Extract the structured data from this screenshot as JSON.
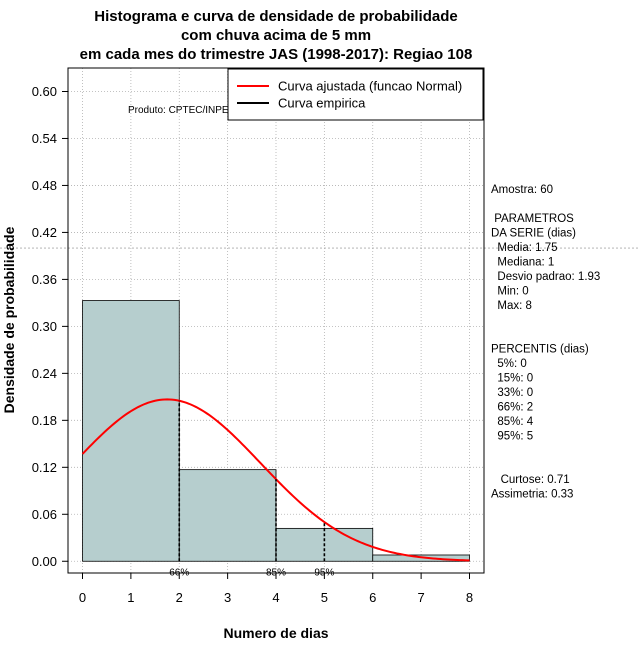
{
  "chart_data": {
    "type": "bar",
    "title_lines": [
      "Histograma e curva de densidade de probabilidade",
      "com chuva acima de 5 mm",
      "em cada mes do trimestre JAS (1998-2017): Regiao 108"
    ],
    "xlabel": "Numero de dias",
    "ylabel": "Densidade de probabilidade",
    "xlim": [
      -0.3,
      8.3
    ],
    "ylim": [
      -0.015,
      0.63
    ],
    "x_ticks": [
      0,
      1,
      2,
      3,
      4,
      5,
      6,
      7,
      8
    ],
    "x_tick_labels": [
      "0",
      "1",
      "2",
      "3",
      "4",
      "5",
      "6",
      "7",
      "8"
    ],
    "y_ticks": [
      0.0,
      0.06,
      0.12,
      0.18,
      0.24,
      0.3,
      0.36,
      0.42,
      0.48,
      0.54,
      0.6
    ],
    "y_tick_labels": [
      "0.00",
      "0.06",
      "0.12",
      "0.18",
      "0.24",
      "0.30",
      "0.36",
      "0.42",
      "0.48",
      "0.54",
      "0.60"
    ],
    "bins": [
      {
        "from": 0,
        "to": 2,
        "density": 0.333
      },
      {
        "from": 2,
        "to": 4,
        "density": 0.117
      },
      {
        "from": 4,
        "to": 6,
        "density": 0.042
      },
      {
        "from": 6,
        "to": 8,
        "density": 0.008
      }
    ],
    "bar_color": "#b6cece",
    "grid": true,
    "reference_hline": 0.4,
    "fitted_curve": {
      "name": "Curva ajustada (funcao Normal)",
      "mean": 1.75,
      "sd": 1.93,
      "x_range": [
        0,
        8
      ],
      "color": "#ff0000"
    },
    "empirical_curve": {
      "name": "Curva empirica",
      "color": "#000000"
    },
    "legend_entries": [
      {
        "label": "Curva ajustada (funcao Normal)",
        "color": "#ff0000"
      },
      {
        "label": "Curva empirica",
        "color": "#000000"
      }
    ],
    "legend_position": "top-right",
    "percentile_markers": [
      {
        "x": 2,
        "label": "66%"
      },
      {
        "x": 4,
        "label": "85%"
      },
      {
        "x": 5,
        "label": "95%"
      }
    ],
    "credit": "Produto: CPTEC/INPE"
  },
  "stats_panel": {
    "lines": [
      "Amostra: 60",
      "",
      " PARAMETROS",
      "DA SERIE (dias)",
      "  Media: 1.75",
      "  Mediana: 1",
      "  Desvio padrao: 1.93",
      "  Min: 0",
      "  Max: 8",
      "",
      "",
      "PERCENTIS (dias)",
      "  5%: 0",
      "  15%: 0",
      "  33%: 0",
      "  66%: 2",
      "  85%: 4",
      "  95%: 5",
      "",
      "",
      "   Curtose: 0.71",
      "Assimetria: 0.33"
    ]
  }
}
